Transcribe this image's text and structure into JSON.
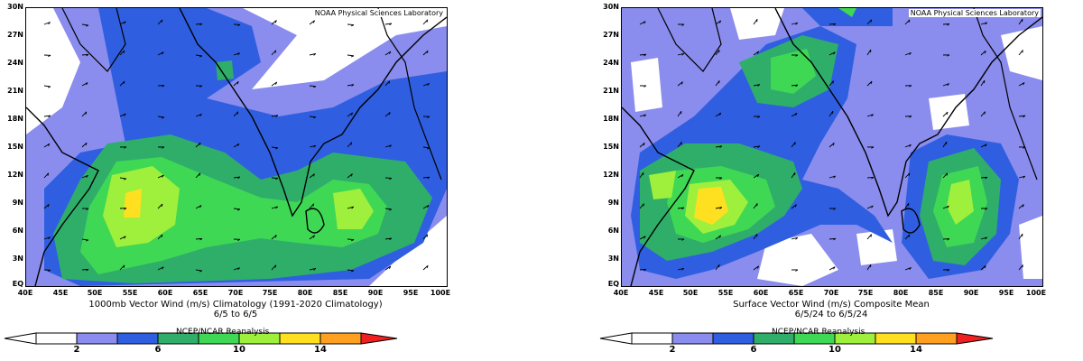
{
  "left_panel": {
    "credit": "NOAA Physical Sciences Laboratory",
    "lat_labels": [
      "30N",
      "27N",
      "24N",
      "21N",
      "18N",
      "15N",
      "12N",
      "9N",
      "6N",
      "3N",
      "EQ"
    ],
    "lon_labels": [
      "40E",
      "45E",
      "50E",
      "55E",
      "60E",
      "65E",
      "70E",
      "75E",
      "80E",
      "85E",
      "90E",
      "95E",
      "100E"
    ],
    "caption_line1": "1000mb Vector Wind (m/s) Climatology (1991-2020 Climatology)",
    "caption_line2": "6/5   to 6/5",
    "reanalysis": "NCEP/NCAR Reanalysis",
    "colorbar_labels": [
      "2",
      "6",
      "10",
      "14"
    ]
  },
  "right_panel": {
    "credit": "NOAA Physical Sciences Laboratory",
    "lat_labels": [
      "30N",
      "27N",
      "24N",
      "21N",
      "18N",
      "15N",
      "12N",
      "9N",
      "6N",
      "3N",
      "EQ"
    ],
    "lon_labels": [
      "40E",
      "45E",
      "50E",
      "55E",
      "60E",
      "65E",
      "70E",
      "75E",
      "80E",
      "85E",
      "90E",
      "95E",
      "100E"
    ],
    "caption_line1": "Surface Vector Wind (m/s) Composite Mean",
    "caption_line2": "6/5/24   to 6/5/24",
    "reanalysis": "NCEP/NCAR Reanalysis",
    "colorbar_labels": [
      "2",
      "6",
      "10",
      "14"
    ]
  },
  "colors": {
    "bin_lt2": "#ffffff",
    "bin_2_4": "#8a8cee",
    "bin_4_6": "#2f5fe0",
    "bin_6_8": "#2fae6a",
    "bin_8_10": "#3fd855",
    "bin_10_12": "#9ff03c",
    "bin_12_14": "#ffe020",
    "bin_14_16": "#ffa020",
    "bin_gt16": "#f02020",
    "coastline": "#000000"
  }
}
